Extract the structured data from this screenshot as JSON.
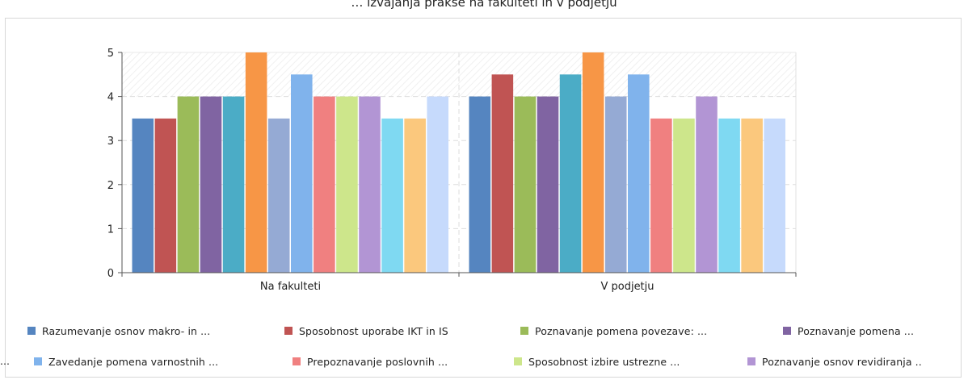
{
  "title": "… izvajanja prakse na fakulteti in v podjetju",
  "chart_data": {
    "type": "bar",
    "categories": [
      "Na fakulteti",
      "V podjetju"
    ],
    "y_ticks": [
      "0",
      "1",
      "2",
      "3",
      "4",
      "5"
    ],
    "ylim": [
      0,
      5
    ],
    "grid": true,
    "legend_position": "bottom",
    "series": [
      {
        "name": "Razumevanje osnov makro- in ...",
        "color": "#5585c0",
        "values": [
          3.5,
          4
        ]
      },
      {
        "name": "Sposobnost uporabe IKT in IS",
        "color": "#c05453",
        "values": [
          3.5,
          4.5
        ]
      },
      {
        "name": "Poznavanje pomena povezave: ...",
        "color": "#9bbb59",
        "values": [
          4,
          4
        ]
      },
      {
        "name": "Poznavanje pomena ...",
        "color": "#8064a2",
        "values": [
          4,
          4
        ]
      },
      {
        "name": "",
        "color": "#4bacc6",
        "values": [
          4,
          4.5
        ]
      },
      {
        "name": "",
        "color": "#f79646",
        "values": [
          5,
          5
        ]
      },
      {
        "name": "",
        "color": "#95aad4",
        "values": [
          3.5,
          4
        ]
      },
      {
        "name": "Zavedanje pomena varnostnih ...",
        "color": "#80b3ec",
        "values": [
          4.5,
          4.5
        ]
      },
      {
        "name": "Prepoznavanje poslovnih ...",
        "color": "#f08080",
        "values": [
          4,
          3.5
        ]
      },
      {
        "name": "Sposobnost izbire ustrezne ...",
        "color": "#cde68b",
        "values": [
          4,
          3.5
        ]
      },
      {
        "name": "Poznavanje osnov revidiranja ..",
        "color": "#b295d4",
        "values": [
          4,
          4
        ]
      },
      {
        "name": "",
        "color": "#7fd9f2",
        "values": [
          3.5,
          3.5
        ]
      },
      {
        "name": "",
        "color": "#fbc87d",
        "values": [
          3.5,
          3.5
        ]
      },
      {
        "name": "",
        "color": "#c6dafc",
        "values": [
          4,
          3.5
        ]
      }
    ]
  },
  "legend_overflow_marker": "..."
}
